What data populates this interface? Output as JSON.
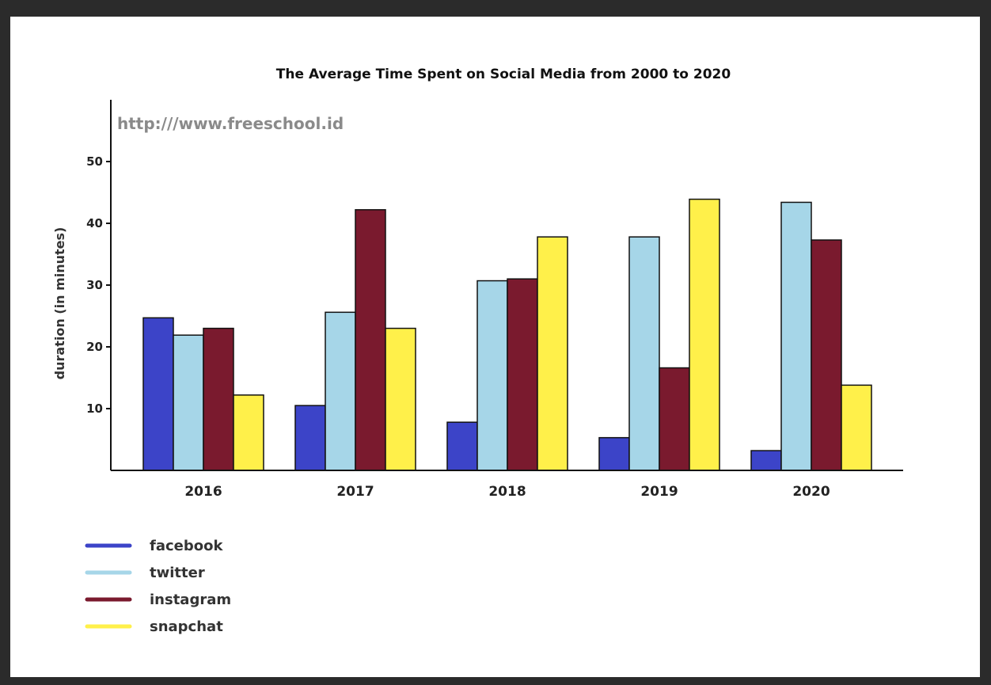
{
  "chart_data": {
    "type": "bar",
    "title": "The Average Time Spent on Social Media from 2000 to 2020",
    "watermark": "http:///www.freeschool.id",
    "xlabel": "",
    "ylabel": "duration (in minutes)",
    "ylim": [
      0,
      60
    ],
    "yticks": [
      "10",
      "20",
      "30",
      "40",
      "50"
    ],
    "categories": [
      "2016",
      "2017",
      "2018",
      "2019",
      "2020"
    ],
    "legend_position": "bottom-left",
    "grid": false,
    "series": [
      {
        "name": "facebook",
        "color": "#3c44c8",
        "values": [
          24.7,
          10.5,
          7.8,
          5.3,
          3.2
        ]
      },
      {
        "name": "twitter",
        "color": "#a6d6e8",
        "values": [
          21.9,
          25.6,
          30.7,
          37.8,
          43.4
        ]
      },
      {
        "name": "instagram",
        "color": "#7a1a2e",
        "values": [
          23.0,
          42.2,
          31.0,
          16.6,
          37.3
        ]
      },
      {
        "name": "snapchat",
        "color": "#fff04a",
        "values": [
          12.2,
          23.0,
          37.8,
          43.9,
          13.8
        ]
      }
    ]
  }
}
